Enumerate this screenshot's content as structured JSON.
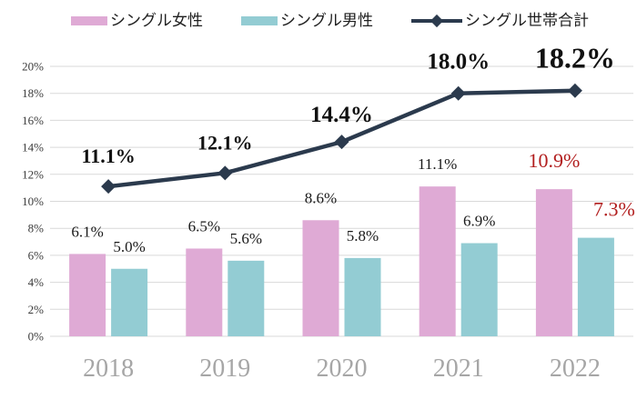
{
  "colors": {
    "background": "#ffffff",
    "grid": "#d9d9d9",
    "axis_text": "#3b3b3b",
    "year_text": "#a6a6a6",
    "bar_label_text": "#1a1a1a",
    "emphasis_red": "#b21e1e",
    "female_pink": "#dfaad5",
    "male_teal": "#93ccd3",
    "total_line": "#2b3a4d",
    "total_label_text": "#111111"
  },
  "legend": {
    "items": [
      {
        "label": "シングル女性",
        "type": "bar",
        "color": "#dfaad5"
      },
      {
        "label": "シングル男性",
        "type": "bar",
        "color": "#93ccd3"
      },
      {
        "label": "シングル世帯合計",
        "type": "line",
        "color": "#2b3a4d"
      }
    ]
  },
  "chart_data": {
    "type": "combo-bar-line",
    "title": "",
    "xlabel": "",
    "ylabel": "",
    "categories": [
      "2018",
      "2019",
      "2020",
      "2021",
      "2022"
    ],
    "series": [
      {
        "name": "シングル女性",
        "type": "bar",
        "color": "#dfaad5",
        "values": [
          6.1,
          6.5,
          8.6,
          11.1,
          10.9
        ],
        "labels": [
          "6.1%",
          "6.5%",
          "8.6%",
          "11.1%",
          "10.9%"
        ],
        "label_colors": [
          "#1a1a1a",
          "#1a1a1a",
          "#1a1a1a",
          "#1a1a1a",
          "#b21e1e"
        ]
      },
      {
        "name": "シングル男性",
        "type": "bar",
        "color": "#93ccd3",
        "values": [
          5.0,
          5.6,
          5.8,
          6.9,
          7.3
        ],
        "labels": [
          "5.0%",
          "5.6%",
          "5.8%",
          "6.9%",
          "7.3%"
        ],
        "label_colors": [
          "#1a1a1a",
          "#1a1a1a",
          "#1a1a1a",
          "#1a1a1a",
          "#b21e1e"
        ]
      },
      {
        "name": "シングル世帯合計",
        "type": "line",
        "color": "#2b3a4d",
        "values": [
          11.1,
          12.1,
          14.4,
          18.0,
          18.2
        ],
        "labels": [
          "11.1%",
          "12.1%",
          "14.4%",
          "18.0%",
          "18.2%"
        ],
        "label_color": "#111111"
      }
    ],
    "ylim": [
      0,
      20
    ],
    "ytick_step": 2,
    "ytick_labels": [
      "0%",
      "2%",
      "4%",
      "6%",
      "8%",
      "10%",
      "12%",
      "14%",
      "16%",
      "18%",
      "20%"
    ],
    "grid": true,
    "legend_position": "top"
  }
}
